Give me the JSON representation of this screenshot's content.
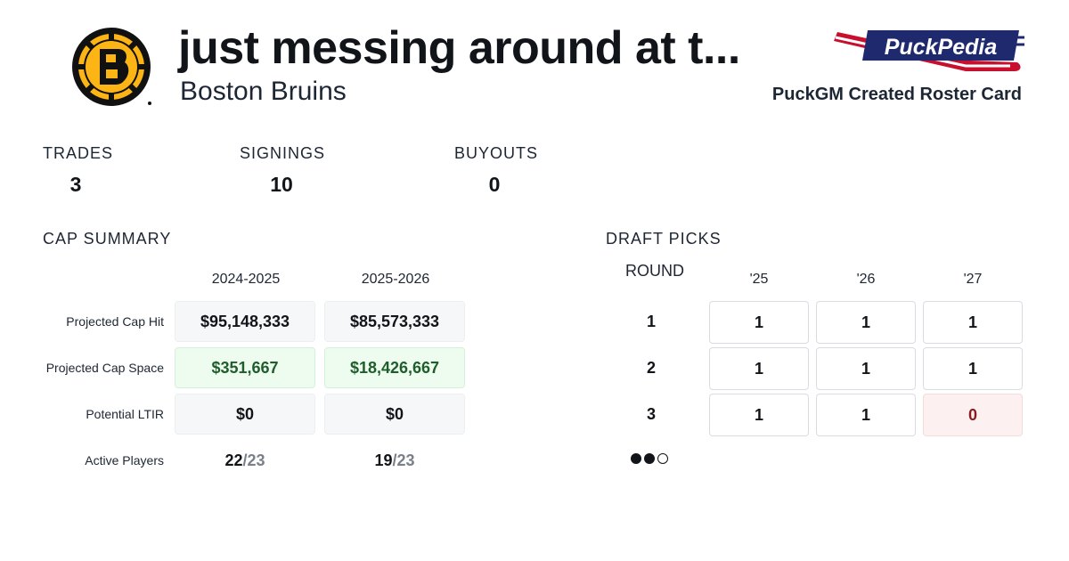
{
  "header": {
    "title": "just messing around at t...",
    "team_name": "Boston Bruins",
    "brand_logo_text": "PuckPedia",
    "card_caption": "PuckGM Created Roster Card",
    "team_logo_icon": "bruins-logo-icon"
  },
  "stats": [
    {
      "label": "TRADES",
      "value": "3"
    },
    {
      "label": "SIGNINGS",
      "value": "10"
    },
    {
      "label": "BUYOUTS",
      "value": "0"
    }
  ],
  "cap_summary": {
    "title": "CAP SUMMARY",
    "seasons": [
      "2024-2025",
      "2025-2026"
    ],
    "rows": [
      {
        "label": "Projected Cap Hit",
        "values": [
          "$95,148,333",
          "$85,573,333"
        ]
      },
      {
        "label": "Projected Cap Space",
        "values": [
          "$351,667",
          "$18,426,667"
        ]
      },
      {
        "label": "Potential LTIR",
        "values": [
          "$0",
          "$0"
        ]
      }
    ],
    "active_players": {
      "label": "Active Players",
      "values": [
        {
          "count": "22",
          "total": "/23"
        },
        {
          "count": "19",
          "total": "/23"
        }
      ]
    }
  },
  "draft_picks": {
    "title": "DRAFT PICKS",
    "round_label": "ROUND",
    "years": [
      "'25",
      "'26",
      "'27"
    ],
    "rounds": [
      {
        "round": "1",
        "picks": [
          "1",
          "1",
          "1"
        ]
      },
      {
        "round": "2",
        "picks": [
          "1",
          "1",
          "1"
        ]
      },
      {
        "round": "3",
        "picks": [
          "1",
          "1",
          "0"
        ]
      }
    ],
    "indicator_dots": [
      "filled",
      "filled",
      "empty"
    ]
  },
  "colors": {
    "positive": "#1f5e2c",
    "positive_bg": "#eefbef",
    "negative": "#8a1c1c",
    "negative_bg": "#fdf0f0",
    "bruins_gold": "#FCB514",
    "bruins_black": "#111111",
    "brand_navy": "#1f2a6e",
    "brand_red": "#c8102e"
  }
}
